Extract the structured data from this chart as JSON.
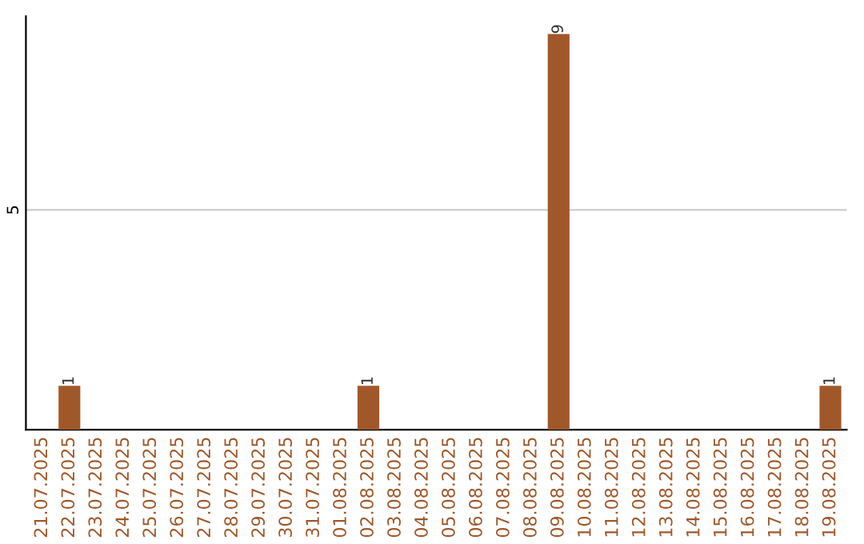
{
  "chart_data": {
    "type": "bar",
    "categories": [
      "21.07.2025",
      "22.07.2025",
      "23.07.2025",
      "24.07.2025",
      "25.07.2025",
      "26.07.2025",
      "27.07.2025",
      "28.07.2025",
      "29.07.2025",
      "30.07.2025",
      "31.07.2025",
      "01.08.2025",
      "02.08.2025",
      "03.08.2025",
      "04.08.2025",
      "05.08.2025",
      "06.08.2025",
      "07.08.2025",
      "08.08.2025",
      "09.08.2025",
      "10.08.2025",
      "11.08.2025",
      "12.08.2025",
      "13.08.2025",
      "14.08.2025",
      "15.08.2025",
      "16.08.2025",
      "17.08.2025",
      "18.08.2025",
      "19.08.2025"
    ],
    "values": [
      0,
      1,
      0,
      0,
      0,
      0,
      0,
      0,
      0,
      0,
      0,
      0,
      1,
      0,
      0,
      0,
      0,
      0,
      0,
      9,
      0,
      0,
      0,
      0,
      0,
      0,
      0,
      0,
      0,
      1
    ],
    "value_labels": [
      null,
      "1",
      null,
      null,
      null,
      null,
      null,
      null,
      null,
      null,
      null,
      null,
      "1",
      null,
      null,
      null,
      null,
      null,
      null,
      "9",
      null,
      null,
      null,
      null,
      null,
      null,
      null,
      null,
      null,
      "1"
    ],
    "color": "#a0582a",
    "ylim": [
      0,
      9.4
    ],
    "yticks": [
      5
    ],
    "grid": "y",
    "legend": false
  }
}
